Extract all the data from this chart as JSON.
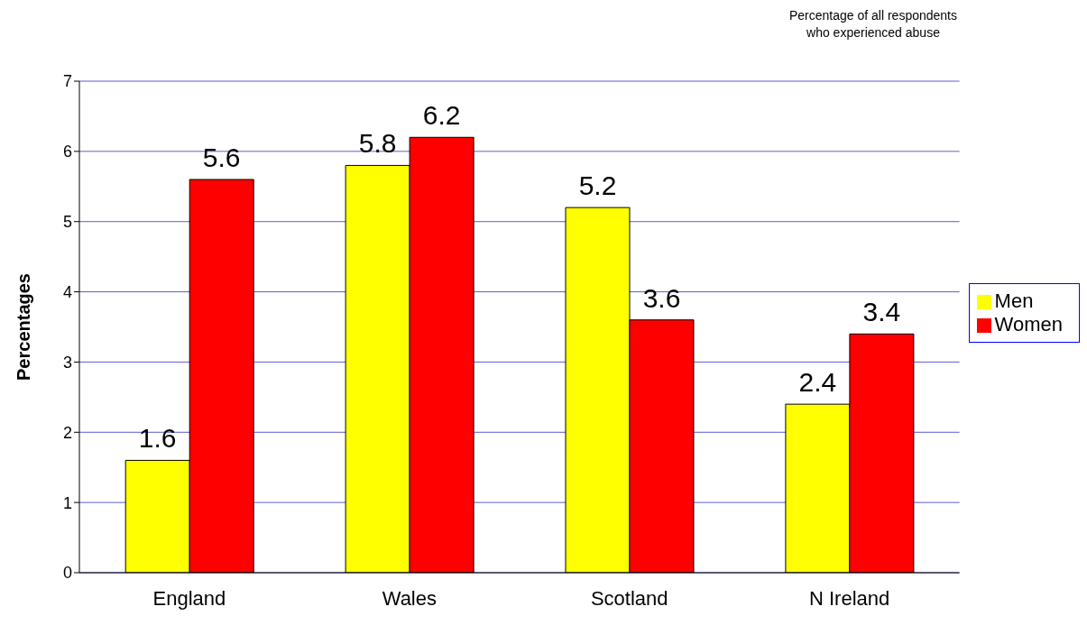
{
  "chart_data": {
    "type": "bar",
    "title": "Percentage of all respondents who experienced abuse",
    "ylabel": "Percentages",
    "categories": [
      "England",
      "Wales",
      "Scotland",
      "N Ireland"
    ],
    "series": [
      {
        "name": "Men",
        "color": "#ffff00",
        "values": [
          1.6,
          5.8,
          5.2,
          2.4
        ]
      },
      {
        "name": "Women",
        "color": "#ff0000",
        "values": [
          5.6,
          6.2,
          3.6,
          3.4
        ]
      }
    ],
    "ylim": [
      0,
      7
    ],
    "yticks": [
      0,
      1,
      2,
      3,
      4,
      5,
      6,
      7
    ],
    "grid": "y",
    "legend": "right",
    "data_labels": true
  }
}
